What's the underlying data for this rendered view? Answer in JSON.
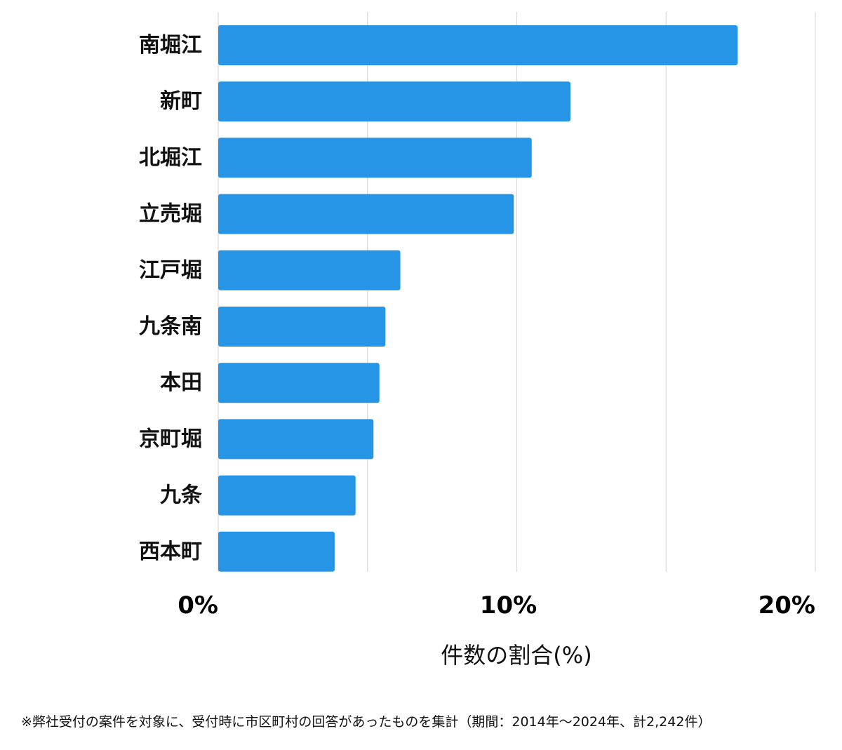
{
  "chart_data": {
    "type": "bar",
    "orientation": "horizontal",
    "categories": [
      "南堀江",
      "新町",
      "北堀江",
      "立売堀",
      "江戸堀",
      "九条南",
      "本田",
      "京町堀",
      "九条",
      "西本町"
    ],
    "values": [
      17.4,
      11.8,
      10.5,
      9.9,
      6.1,
      5.6,
      5.4,
      5.2,
      4.6,
      3.9
    ],
    "unit": "%",
    "xlim": [
      0,
      20
    ],
    "grid_values": [
      0,
      5,
      10,
      15,
      20
    ],
    "ticks": [
      {
        "value": 0,
        "label": "0%"
      },
      {
        "value": 10,
        "label": "10%"
      },
      {
        "value": 20,
        "label": "20%"
      }
    ],
    "xlabel": "件数の割合(%)",
    "ylabel": "",
    "grid": true,
    "legend": "none",
    "bar_color": "#2795e6",
    "grid_color": "#d9d9d9"
  },
  "footnote": "※弊社受付の案件を対象に、受付時に市区町村の回答があったものを集計（期間：2014年～2024年、計2,242件）"
}
